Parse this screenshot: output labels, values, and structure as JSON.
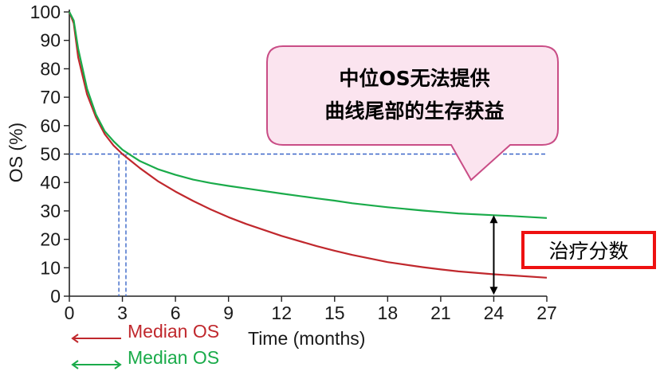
{
  "chart_data": {
    "type": "line",
    "ylabel": "OS (%)",
    "xlabel": "Time (months)",
    "xlim": [
      0,
      27
    ],
    "ylim": [
      0,
      100
    ],
    "x_ticks": [
      0,
      3,
      6,
      9,
      12,
      15,
      18,
      21,
      24,
      27
    ],
    "y_ticks": [
      0,
      10,
      20,
      30,
      40,
      50,
      60,
      70,
      80,
      90,
      100
    ],
    "grid": false,
    "series": [
      {
        "name": "Median OS",
        "color": "#c0282d",
        "x": [
          0,
          0.25,
          0.5,
          1,
          1.5,
          2,
          2.5,
          3,
          3.5,
          4,
          5,
          6,
          7,
          8,
          9,
          10,
          12,
          14,
          15,
          16,
          18,
          20,
          21,
          22,
          24,
          25,
          27
        ],
        "y": [
          100,
          96,
          84,
          71,
          63,
          57,
          53,
          50,
          47.5,
          45,
          40.5,
          36.8,
          33.5,
          30.5,
          27.8,
          25.4,
          21.2,
          17.6,
          16,
          14.5,
          12,
          10.2,
          9.4,
          8.7,
          7.7,
          7.3,
          6.5
        ]
      },
      {
        "name": "Median OS",
        "color": "#1aab4a",
        "x": [
          0,
          0.25,
          0.5,
          1,
          1.5,
          2,
          2.5,
          3,
          3.5,
          4,
          5,
          6,
          7,
          8,
          9,
          10,
          12,
          14,
          15,
          16,
          18,
          20,
          21,
          22,
          24,
          25,
          27
        ],
        "y": [
          100,
          97,
          87,
          73,
          64,
          58,
          54.5,
          51.5,
          49.5,
          47.5,
          44.7,
          42.7,
          41,
          39.8,
          38.8,
          37.9,
          36.1,
          34.4,
          33.6,
          32.7,
          31.3,
          30.1,
          29.6,
          29.1,
          28.5,
          28.2,
          27.5
        ]
      }
    ],
    "median_line": {
      "y": 50,
      "x_red": 2.8,
      "x_green": 3.2,
      "x_end": 27
    },
    "difference_arrow": {
      "x": 24,
      "y_top": 28.5,
      "y_bottom": 0.5
    },
    "callout": {
      "line1": "中位OS无法提供",
      "line2": "曲线尾部的生存获益",
      "fill": "#fbe4ef",
      "stroke": "#c94d86"
    },
    "side_label": {
      "text": "治疗分数",
      "border_color": "#ee1111"
    },
    "legend": [
      {
        "name": "Median OS",
        "color": "#c0282d"
      },
      {
        "name": "Median OS",
        "color": "#1aab4a"
      }
    ],
    "annotation_color": "#3a66c8"
  }
}
